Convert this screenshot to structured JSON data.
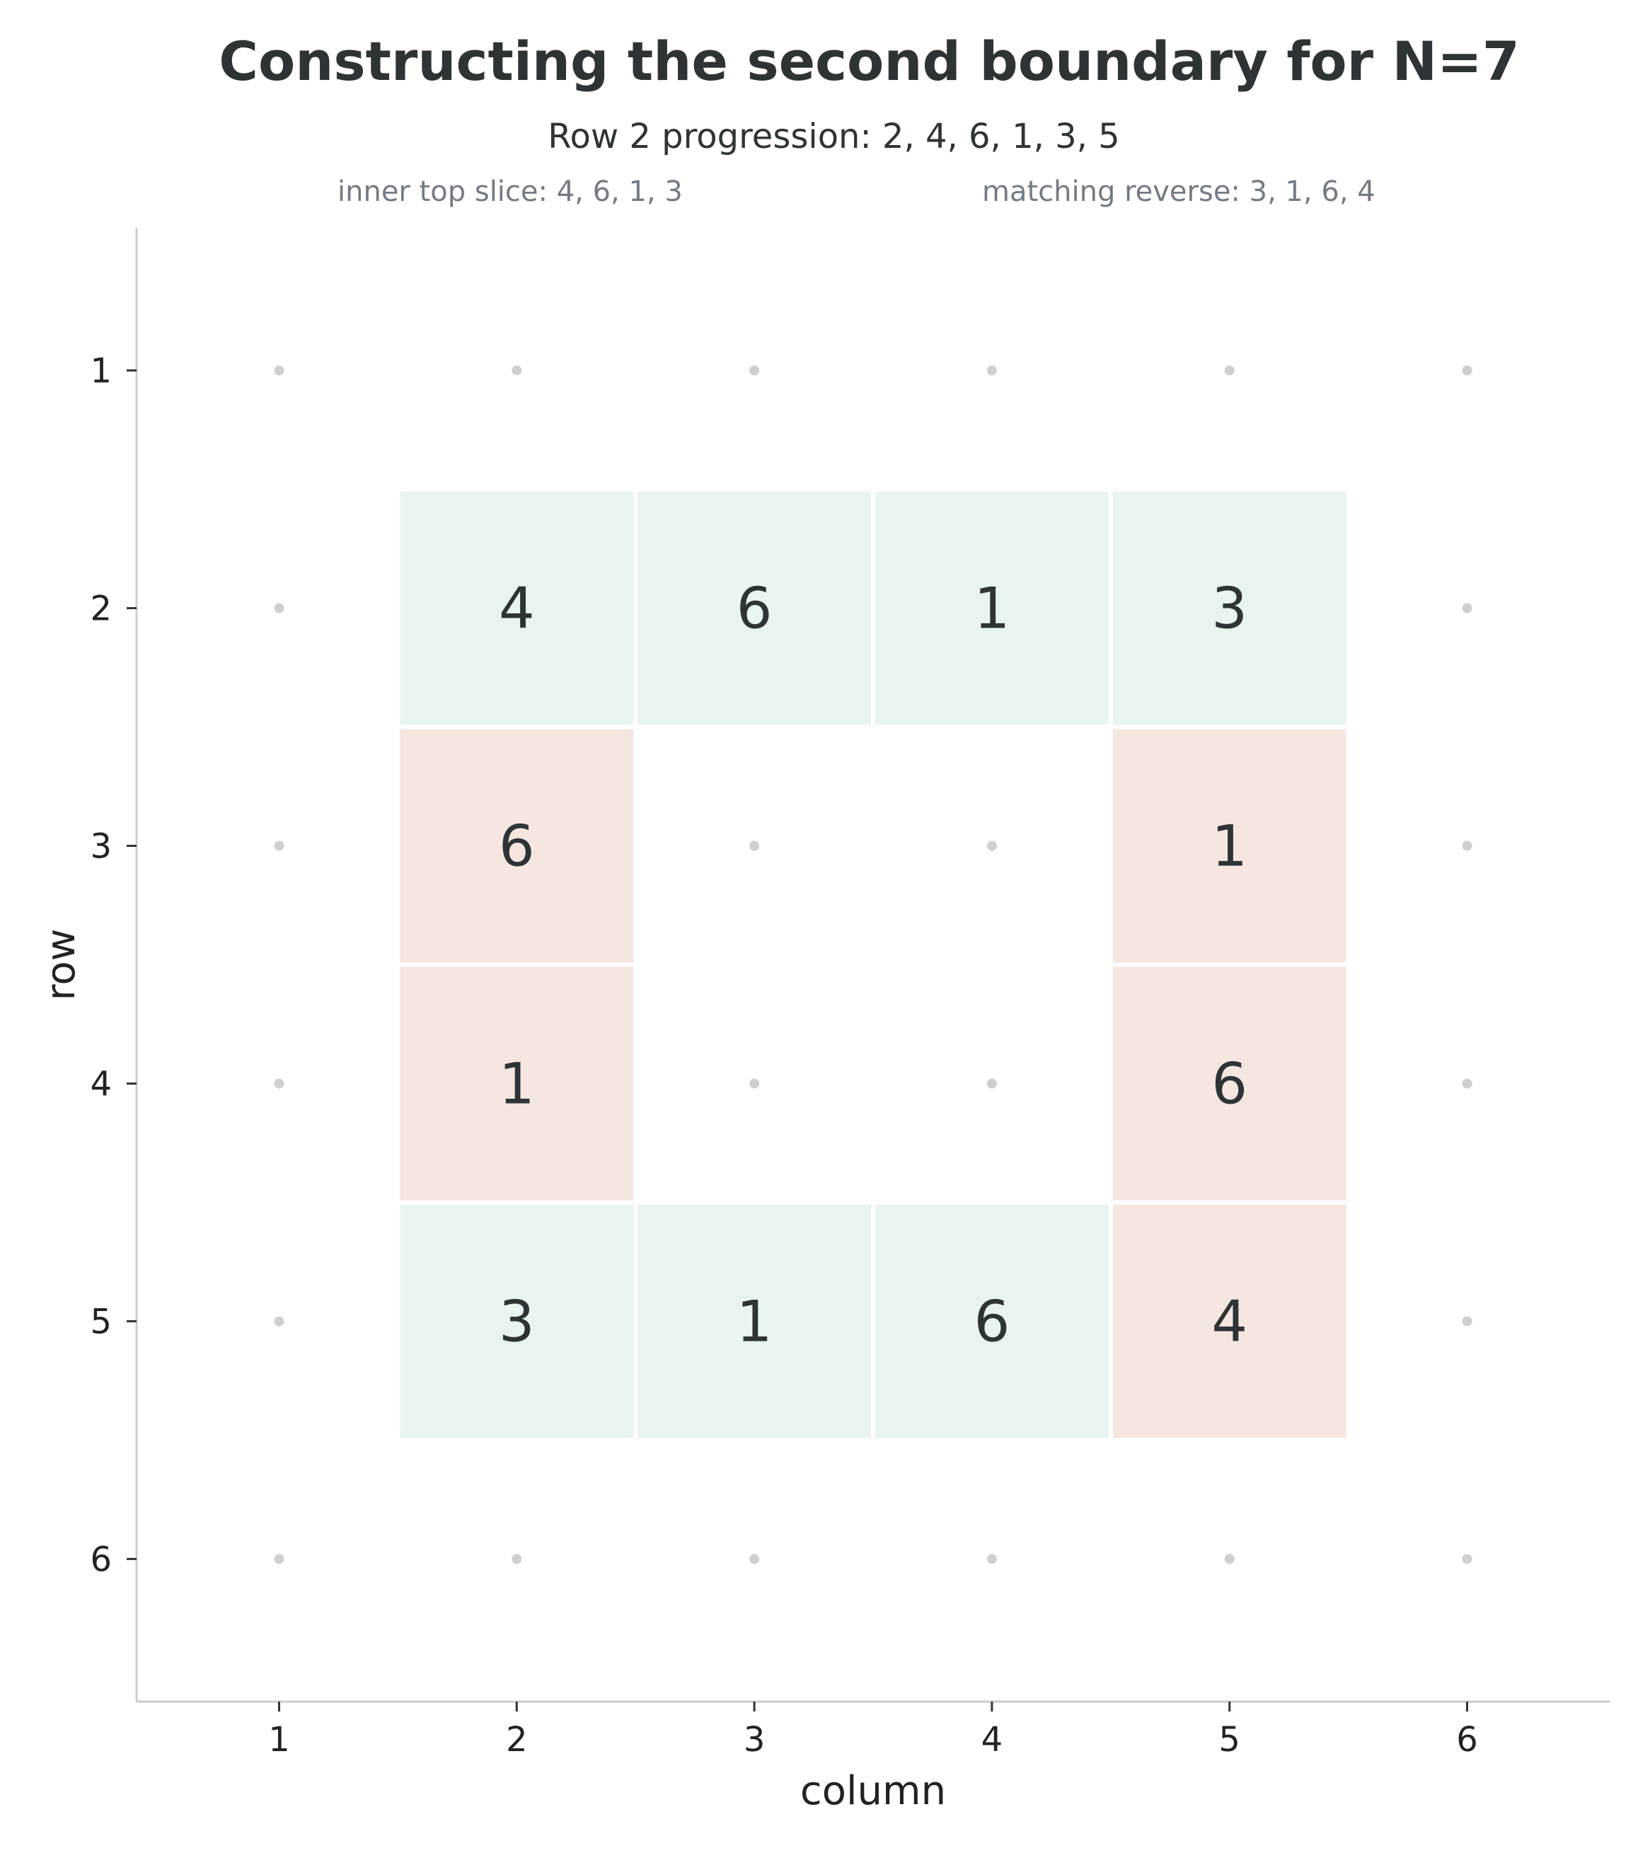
{
  "chart_data": {
    "type": "heatmap",
    "title": "Constructing the second boundary for N=7",
    "subtitle": "Row 2 progression: 2, 4, 6, 1, 3, 5",
    "annotations": [
      "inner top slice: 4, 6, 1, 3",
      "matching reverse: 3, 1, 6, 4"
    ],
    "xlabel": "column",
    "ylabel": "row",
    "x_ticks": [
      1,
      2,
      3,
      4,
      5,
      6
    ],
    "y_ticks": [
      1,
      2,
      3,
      4,
      5,
      6
    ],
    "xlim": [
      0.4,
      6.6
    ],
    "ylim": [
      0.4,
      6.6
    ],
    "y_inverted": true,
    "grid": false,
    "colors": {
      "horizontal_cell": "#e8f4f0",
      "vertical_cell": "#f6e6e0",
      "dot": "#cfcfcf",
      "text": "#2e3436",
      "axis": "#cccccc"
    },
    "cells": [
      {
        "row": 2,
        "col": 2,
        "value": "4",
        "group": "horizontal"
      },
      {
        "row": 2,
        "col": 3,
        "value": "6",
        "group": "horizontal"
      },
      {
        "row": 2,
        "col": 4,
        "value": "1",
        "group": "horizontal"
      },
      {
        "row": 2,
        "col": 5,
        "value": "3",
        "group": "horizontal"
      },
      {
        "row": 3,
        "col": 2,
        "value": "6",
        "group": "vertical"
      },
      {
        "row": 3,
        "col": 5,
        "value": "1",
        "group": "vertical"
      },
      {
        "row": 4,
        "col": 2,
        "value": "1",
        "group": "vertical"
      },
      {
        "row": 4,
        "col": 5,
        "value": "6",
        "group": "vertical"
      },
      {
        "row": 5,
        "col": 2,
        "value": "3",
        "group": "horizontal"
      },
      {
        "row": 5,
        "col": 3,
        "value": "1",
        "group": "horizontal"
      },
      {
        "row": 5,
        "col": 4,
        "value": "6",
        "group": "horizontal"
      },
      {
        "row": 5,
        "col": 5,
        "value": "4",
        "group": "vertical"
      }
    ],
    "empty_dots": "all grid positions (rows 1-6, cols 1-6) not covered by a cell"
  }
}
